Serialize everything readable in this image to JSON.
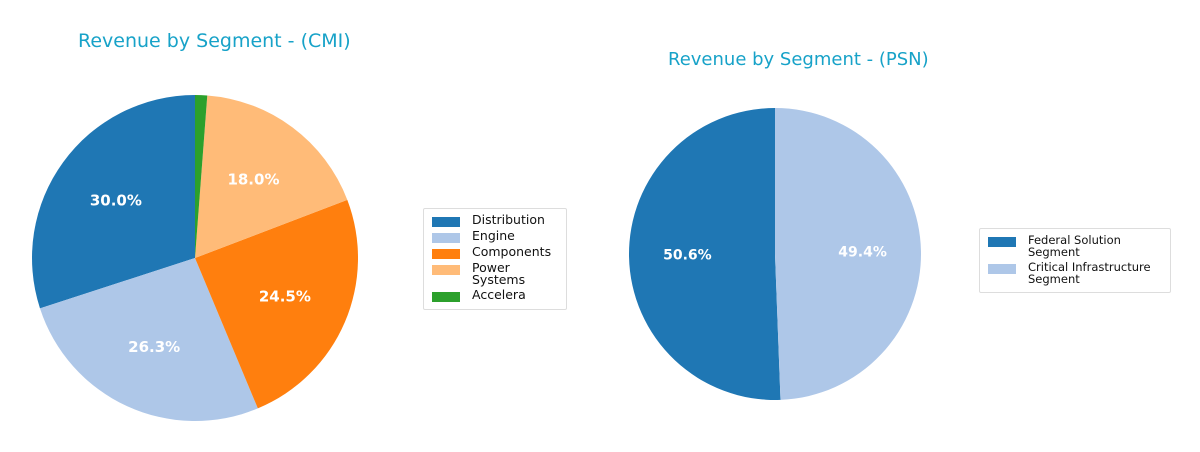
{
  "chart_data": [
    {
      "type": "pie",
      "title": "Revenue by Segment - (CMI)",
      "labels": [
        "Distribution",
        "Engine",
        "Components",
        "Power Systems",
        "Accelera"
      ],
      "values": [
        30.0,
        26.3,
        24.5,
        18.0,
        1.2
      ],
      "display_labels": [
        "30.0%",
        "26.3%",
        "24.5%",
        "18.0%",
        ""
      ],
      "colors": [
        "#1f77b4",
        "#aec7e8",
        "#ff7f0e",
        "#ffbb78",
        "#2ca02c"
      ],
      "start_angle": 90,
      "direction": "counterclockwise",
      "legend_position": "right"
    },
    {
      "type": "pie",
      "title": "Revenue by Segment - (PSN)",
      "labels": [
        "Federal Solution Segment",
        "Critical Infrastructure Segment"
      ],
      "legend_labels": [
        "Federal Solution Segment",
        "Critical Infrastructure\nSegment"
      ],
      "values": [
        50.6,
        49.4
      ],
      "display_labels": [
        "50.6%",
        "49.4%"
      ],
      "colors": [
        "#1f77b4",
        "#aec7e8"
      ],
      "start_angle": 90,
      "direction": "counterclockwise",
      "legend_position": "right"
    }
  ],
  "titles": {
    "cmi": "Revenue by Segment - (CMI)",
    "psn": "Revenue by Segment - (PSN)"
  },
  "title_color": "#17a2c8"
}
